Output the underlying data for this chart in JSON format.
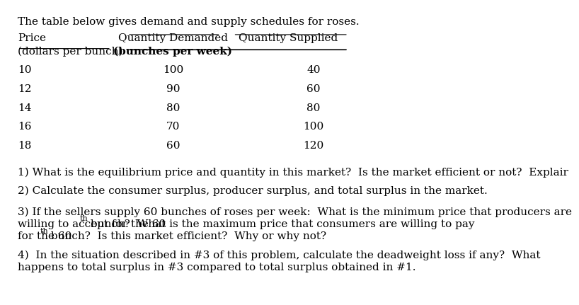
{
  "title": "The table below gives demand and supply schedules for roses.",
  "header1_left": "Price",
  "header1_mid": "Quantity Demanded",
  "header1_right": "Quantity Supplied",
  "header2_left": "(dollars per bunch)",
  "header2_mid": "(bunches per week)",
  "table_data": [
    [
      10,
      100,
      40
    ],
    [
      12,
      90,
      60
    ],
    [
      14,
      80,
      80
    ],
    [
      16,
      70,
      100
    ],
    [
      18,
      60,
      120
    ]
  ],
  "q1": "1) What is the equilibrium price and quantity in this market?  Is the market efficient or not?  Explair",
  "q2": "2) Calculate the consumer surplus, producer surplus, and total surplus in the market.",
  "q3_line1": "3) If the sellers supply 60 bunches of roses per week:  What is the minimum price that producers are",
  "q3_line2_pre": "willing to accept for the 60",
  "q3_line2_sup": "th",
  "q3_line2_post": " bunch?  What is the maximum price that consumers are willing to pay",
  "q3_line3_pre": "for the 60",
  "q3_line3_sup": "th",
  "q3_line3_post": " bunch?  Is this market efficient?  Why or why not?",
  "q4_line1": "4)  In the situation described in #3 of this problem, calculate the deadweight loss if any?  What",
  "q4_line2": "happens to total surplus in #3 compared to total surplus obtained in #1.",
  "bg_color": "#ffffff",
  "text_color": "#000000",
  "font_size": 11
}
